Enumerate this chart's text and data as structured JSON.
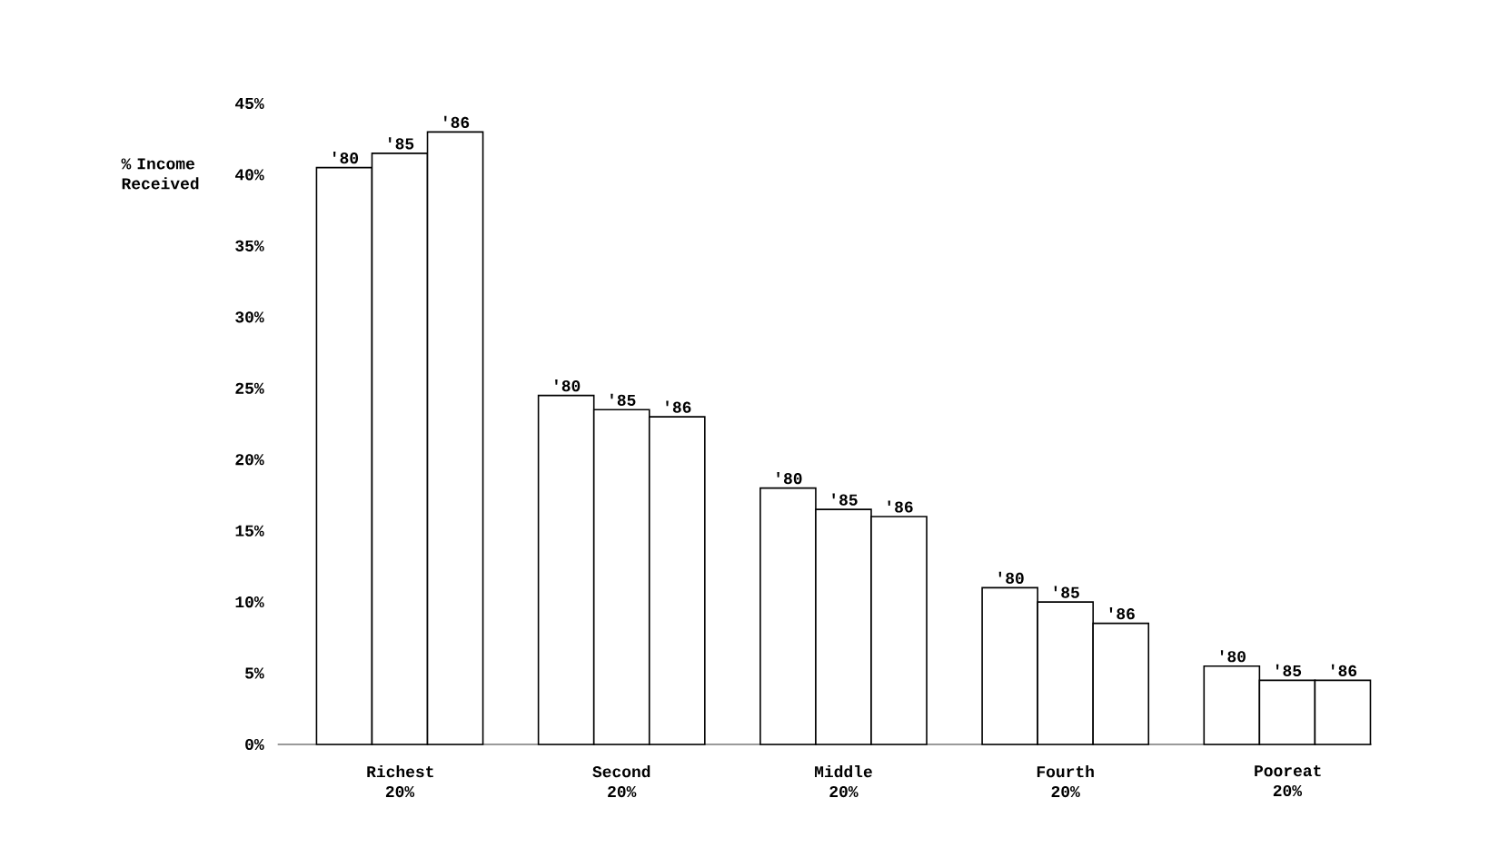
{
  "chart_data": {
    "type": "bar",
    "ylabel": "% Income Received",
    "categories": [
      "Richest 20%",
      "Second 20%",
      "Middle 20%",
      "Fourth 20%",
      "Pooreat 20%"
    ],
    "series": [
      {
        "name": "'80",
        "color": "#ffffff",
        "values": [
          40.5,
          24.5,
          18,
          11,
          5.5
        ]
      },
      {
        "name": "'85",
        "color": "#ffffff",
        "values": [
          41.5,
          23.5,
          16.5,
          10,
          4.5
        ]
      },
      {
        "name": "'86",
        "color": "#ffffff",
        "values": [
          43,
          23,
          16,
          8.5,
          4.5
        ]
      }
    ],
    "ylim": [
      0,
      45
    ],
    "yticks": [
      {
        "value": 0,
        "label": "0%"
      },
      {
        "value": 5,
        "label": "5%"
      },
      {
        "value": 10,
        "label": "10%"
      },
      {
        "value": 15,
        "label": "15%"
      },
      {
        "value": 20,
        "label": "20%"
      },
      {
        "value": 25,
        "label": "25%"
      },
      {
        "value": 30,
        "label": "30%"
      },
      {
        "value": 35,
        "label": "35%"
      },
      {
        "value": 40,
        "label": "40%"
      },
      {
        "value": 45,
        "label": "45%"
      }
    ],
    "legend": false
  }
}
